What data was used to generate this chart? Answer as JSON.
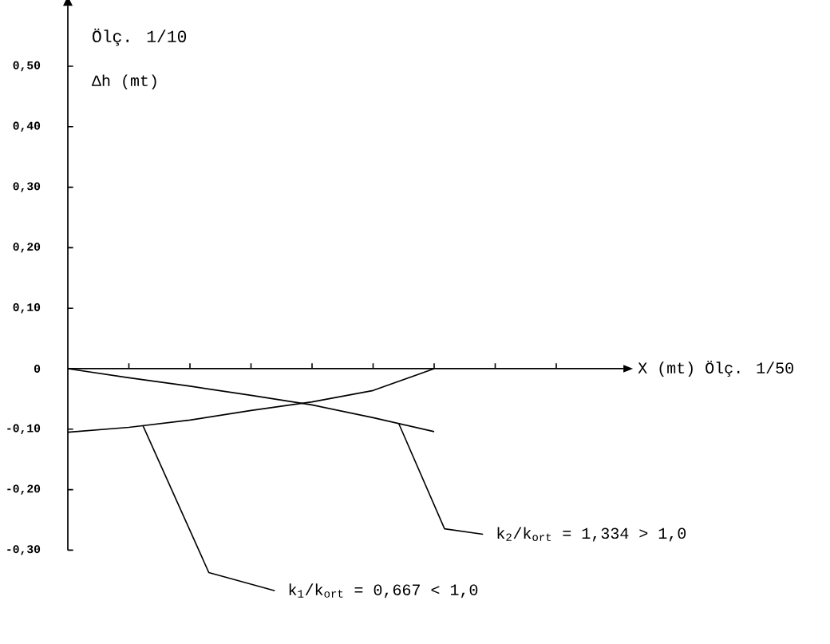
{
  "chart_data": {
    "type": "line",
    "xlabel": "X (mt) Ölç. 1/50",
    "ylabel": "Δh (mt)",
    "annotations": [
      "Ölç. 1/10",
      "k$_{2}$/k$_{ort}$ = 1,334 > 1,0",
      "k$_{1}$/k$_{ort}$ = 0,667 < 1,0"
    ],
    "categories": [
      null,
      null,
      null,
      null,
      null,
      null,
      null,
      null,
      null
    ],
    "ylim": [
      -0.3,
      0.6
    ],
    "yticks": [
      {
        "value": 0.5,
        "label": "0,50"
      },
      {
        "value": 0.4,
        "label": "0,40"
      },
      {
        "value": 0.3,
        "label": "0,30"
      },
      {
        "value": 0.2,
        "label": "0,20"
      },
      {
        "value": 0.1,
        "label": "0,10"
      },
      {
        "value": 0,
        "label": "0"
      },
      {
        "value": -0.1,
        "label": "-0,10"
      },
      {
        "value": -0.2,
        "label": "-0,20"
      },
      {
        "value": -0.3,
        "label": "-0,30"
      }
    ],
    "tick_labels": "y",
    "series": [
      {
        "color": "#000000",
        "values": [
          0,
          -0.015,
          -0.029,
          -0.044,
          -0.06,
          -0.081,
          -0.104,
          null,
          null
        ]
      },
      {
        "color": "#000000",
        "values": [
          -0.105,
          -0.097,
          -0.085,
          -0.069,
          -0.055,
          -0.036,
          0,
          null,
          null
        ]
      }
    ]
  }
}
